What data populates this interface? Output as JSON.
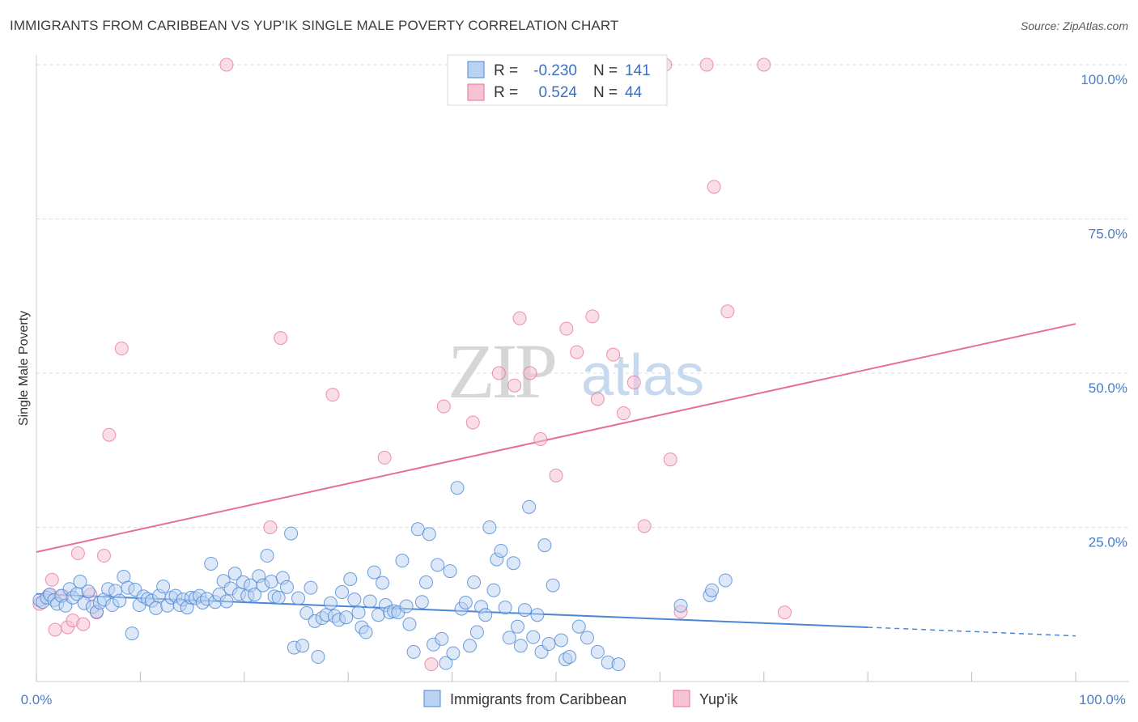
{
  "header": {
    "title": "IMMIGRANTS FROM CARIBBEAN VS YUP'IK SINGLE MALE POVERTY CORRELATION CHART",
    "source": "Source: ZipAtlas.com"
  },
  "watermark": {
    "zip": "ZIP",
    "atlas": "atlas"
  },
  "colors": {
    "blue": "#4a86d4",
    "blue_fill": "#b9d2f2",
    "pink": "#e56f98",
    "pink_fill": "#f6c3d4",
    "grid": "#d9dde3",
    "tick_text": "#4a7cc8"
  },
  "legend": {
    "rows": [
      {
        "r_label": "R =",
        "r_value": "-0.230",
        "n_label": "N =",
        "n_value": "141"
      },
      {
        "r_label": "R =",
        "r_value": "0.524",
        "n_label": "N =",
        "n_value": "44"
      }
    ]
  },
  "chart_data": {
    "type": "scatter",
    "title": "IMMIGRANTS FROM CARIBBEAN VS YUP'IK SINGLE MALE POVERTY CORRELATION CHART",
    "xlabel": "",
    "ylabel": "Single Male Poverty",
    "xlim": [
      0,
      100
    ],
    "ylim": [
      0,
      100
    ],
    "x_tick_labels": [
      "0.0%",
      "100.0%"
    ],
    "y_ticks": [
      25,
      50,
      75,
      100
    ],
    "y_tick_labels": [
      "25.0%",
      "50.0%",
      "75.0%",
      "100.0%"
    ],
    "grid": true,
    "legend_position": "top-center",
    "series": [
      {
        "name": "Immigrants from Caribbean",
        "color": "#4a86d4",
        "R": -0.23,
        "N": 141,
        "trend": {
          "x0": 0,
          "y0": 14.2,
          "x1": 80,
          "y1": 8.8,
          "dashed_to_x": 100,
          "dashed_to_y": 7.4
        },
        "points": [
          [
            0.3,
            13.2
          ],
          [
            0.6,
            12.9
          ],
          [
            1.0,
            13.6
          ],
          [
            1.3,
            14.1
          ],
          [
            1.7,
            13.2
          ],
          [
            2.0,
            12.6
          ],
          [
            2.4,
            13.9
          ],
          [
            2.8,
            12.3
          ],
          [
            3.2,
            15.0
          ],
          [
            3.5,
            13.6
          ],
          [
            3.9,
            14.2
          ],
          [
            4.2,
            16.2
          ],
          [
            4.6,
            12.7
          ],
          [
            5.0,
            14.6
          ],
          [
            5.4,
            12.1
          ],
          [
            5.8,
            11.3
          ],
          [
            6.1,
            12.8
          ],
          [
            6.5,
            13.3
          ],
          [
            6.9,
            15.0
          ],
          [
            7.3,
            12.4
          ],
          [
            7.6,
            14.7
          ],
          [
            8.0,
            13.1
          ],
          [
            8.4,
            17.0
          ],
          [
            8.8,
            15.2
          ],
          [
            9.2,
            7.8
          ],
          [
            9.5,
            14.9
          ],
          [
            9.9,
            12.4
          ],
          [
            10.3,
            13.8
          ],
          [
            10.7,
            13.4
          ],
          [
            11.1,
            13.1
          ],
          [
            11.5,
            11.9
          ],
          [
            11.8,
            13.9
          ],
          [
            12.2,
            15.4
          ],
          [
            12.6,
            12.3
          ],
          [
            13.0,
            13.6
          ],
          [
            13.4,
            13.9
          ],
          [
            13.8,
            12.4
          ],
          [
            14.1,
            13.3
          ],
          [
            14.5,
            12.0
          ],
          [
            14.9,
            13.6
          ],
          [
            15.3,
            13.5
          ],
          [
            15.7,
            13.9
          ],
          [
            16.0,
            12.8
          ],
          [
            16.4,
            13.4
          ],
          [
            16.8,
            19.1
          ],
          [
            17.2,
            12.9
          ],
          [
            17.6,
            14.1
          ],
          [
            18.0,
            16.3
          ],
          [
            18.3,
            13.0
          ],
          [
            18.7,
            15.1
          ],
          [
            19.1,
            17.5
          ],
          [
            19.5,
            14.2
          ],
          [
            19.9,
            16.1
          ],
          [
            20.3,
            13.9
          ],
          [
            20.6,
            15.6
          ],
          [
            21.0,
            14.1
          ],
          [
            21.4,
            17.1
          ],
          [
            21.8,
            15.6
          ],
          [
            22.2,
            20.4
          ],
          [
            22.6,
            16.2
          ],
          [
            22.9,
            13.8
          ],
          [
            23.3,
            13.6
          ],
          [
            23.7,
            16.8
          ],
          [
            24.1,
            15.3
          ],
          [
            24.5,
            24.0
          ],
          [
            24.8,
            5.5
          ],
          [
            25.2,
            13.5
          ],
          [
            25.6,
            5.8
          ],
          [
            26.0,
            11.1
          ],
          [
            26.4,
            15.2
          ],
          [
            26.8,
            9.8
          ],
          [
            27.1,
            4.0
          ],
          [
            27.5,
            10.3
          ],
          [
            27.9,
            10.8
          ],
          [
            28.3,
            12.7
          ],
          [
            28.7,
            10.6
          ],
          [
            29.1,
            10.0
          ],
          [
            29.4,
            14.5
          ],
          [
            29.8,
            10.4
          ],
          [
            30.2,
            16.6
          ],
          [
            30.6,
            13.3
          ],
          [
            31.0,
            11.2
          ],
          [
            31.3,
            8.8
          ],
          [
            31.7,
            8.0
          ],
          [
            32.1,
            13.0
          ],
          [
            32.5,
            17.7
          ],
          [
            32.9,
            10.8
          ],
          [
            33.3,
            16.0
          ],
          [
            33.6,
            12.4
          ],
          [
            34.0,
            11.2
          ],
          [
            34.4,
            11.4
          ],
          [
            34.8,
            11.2
          ],
          [
            35.2,
            19.6
          ],
          [
            35.6,
            12.2
          ],
          [
            35.9,
            9.3
          ],
          [
            36.3,
            4.8
          ],
          [
            36.7,
            24.7
          ],
          [
            37.1,
            12.9
          ],
          [
            37.5,
            16.1
          ],
          [
            37.8,
            23.9
          ],
          [
            38.2,
            6.0
          ],
          [
            38.6,
            18.9
          ],
          [
            39.0,
            6.9
          ],
          [
            39.4,
            3.0
          ],
          [
            39.8,
            17.9
          ],
          [
            40.1,
            4.6
          ],
          [
            40.5,
            31.4
          ],
          [
            40.9,
            11.8
          ],
          [
            41.3,
            12.8
          ],
          [
            41.7,
            5.8
          ],
          [
            42.1,
            16.1
          ],
          [
            42.4,
            8.0
          ],
          [
            42.8,
            12.1
          ],
          [
            43.2,
            10.8
          ],
          [
            43.6,
            25.0
          ],
          [
            44.0,
            14.8
          ],
          [
            44.3,
            19.8
          ],
          [
            44.7,
            21.2
          ],
          [
            45.1,
            12.0
          ],
          [
            45.5,
            7.1
          ],
          [
            45.9,
            19.2
          ],
          [
            46.3,
            8.9
          ],
          [
            46.6,
            5.8
          ],
          [
            47.0,
            11.6
          ],
          [
            47.4,
            28.3
          ],
          [
            47.8,
            7.2
          ],
          [
            48.2,
            10.8
          ],
          [
            48.6,
            4.8
          ],
          [
            48.9,
            22.1
          ],
          [
            49.3,
            6.1
          ],
          [
            49.7,
            15.6
          ],
          [
            50.5,
            6.7
          ],
          [
            50.9,
            3.6
          ],
          [
            51.3,
            4.0
          ],
          [
            52.2,
            8.9
          ],
          [
            53.0,
            7.1
          ],
          [
            54.0,
            4.8
          ],
          [
            55.0,
            3.1
          ],
          [
            56.0,
            2.8
          ],
          [
            62.0,
            12.3
          ],
          [
            64.8,
            14.0
          ],
          [
            65.0,
            14.8
          ],
          [
            66.3,
            16.4
          ]
        ]
      },
      {
        "name": "Yup'ik",
        "color": "#e56f98",
        "R": 0.524,
        "N": 44,
        "trend": {
          "x0": 0,
          "y0": 21.0,
          "x1": 100,
          "y1": 58.0
        },
        "points": [
          [
            0.3,
            12.6
          ],
          [
            1.2,
            14.0
          ],
          [
            1.5,
            16.5
          ],
          [
            1.8,
            8.4
          ],
          [
            2.5,
            13.9
          ],
          [
            3.0,
            8.8
          ],
          [
            3.5,
            9.9
          ],
          [
            4.0,
            20.8
          ],
          [
            4.5,
            9.3
          ],
          [
            5.2,
            14.1
          ],
          [
            5.8,
            11.2
          ],
          [
            6.5,
            20.4
          ],
          [
            7.0,
            40.0
          ],
          [
            8.2,
            54.0
          ],
          [
            18.3,
            100.0
          ],
          [
            22.5,
            25.0
          ],
          [
            23.5,
            55.7
          ],
          [
            28.5,
            46.5
          ],
          [
            33.5,
            36.3
          ],
          [
            38.0,
            2.8
          ],
          [
            39.2,
            44.6
          ],
          [
            42.0,
            42.0
          ],
          [
            44.5,
            50.0
          ],
          [
            46.0,
            48.0
          ],
          [
            46.5,
            58.9
          ],
          [
            47.5,
            50.0
          ],
          [
            48.5,
            39.3
          ],
          [
            50.0,
            33.4
          ],
          [
            51.0,
            57.2
          ],
          [
            52.0,
            53.4
          ],
          [
            53.5,
            59.2
          ],
          [
            54.0,
            45.8
          ],
          [
            55.5,
            53.0
          ],
          [
            56.5,
            43.5
          ],
          [
            57.5,
            48.5
          ],
          [
            58.5,
            25.2
          ],
          [
            60.5,
            100.0
          ],
          [
            61.0,
            36.0
          ],
          [
            62.0,
            11.3
          ],
          [
            64.5,
            100.0
          ],
          [
            65.2,
            80.2
          ],
          [
            66.5,
            60.0
          ],
          [
            70.0,
            100.0
          ],
          [
            72.0,
            11.2
          ]
        ]
      }
    ]
  },
  "bottom_legend": [
    {
      "label": "Immigrants from Caribbean"
    },
    {
      "label": "Yup'ik"
    }
  ]
}
